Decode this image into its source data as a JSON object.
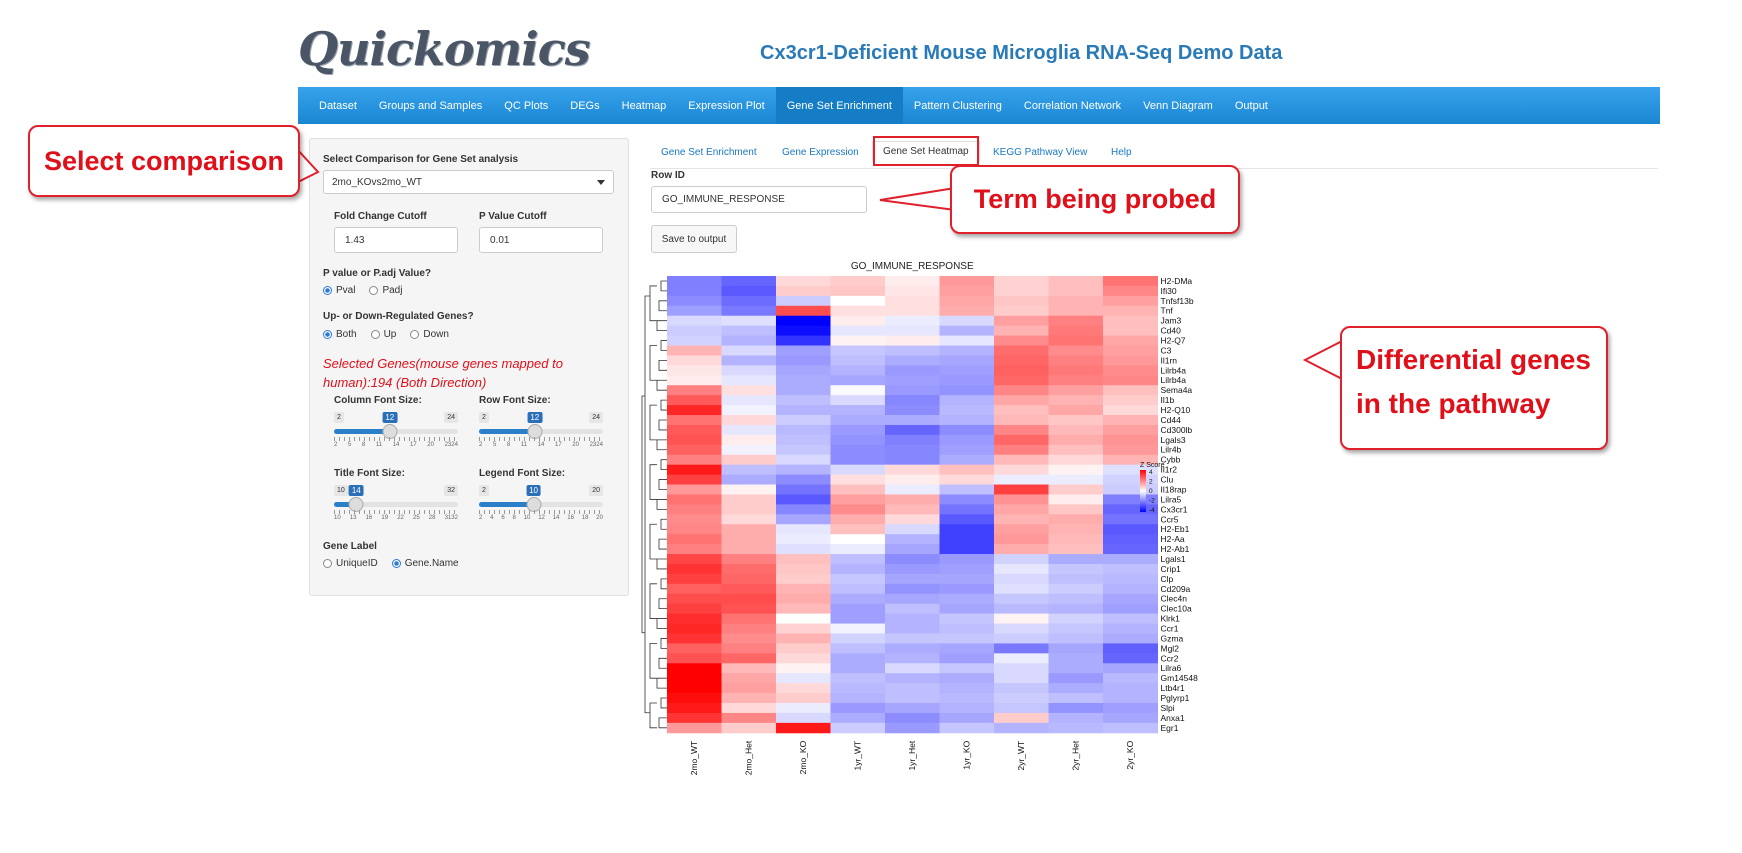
{
  "app": {
    "logo_text": "Quickomics",
    "title": "Cx3cr1-Deficient Mouse Microglia RNA-Seq Demo Data"
  },
  "navbar": {
    "items": [
      "Dataset",
      "Groups and Samples",
      "QC Plots",
      "DEGs",
      "Heatmap",
      "Expression Plot",
      "Gene Set Enrichment",
      "Pattern Clustering",
      "Correlation Network",
      "Venn Diagram",
      "Output"
    ],
    "active": "Gene Set Enrichment"
  },
  "sidebar": {
    "comparison_label": "Select Comparison for Gene Set analysis",
    "comparison_value": "2mo_KOvs2mo_WT",
    "fc_label": "Fold Change Cutoff",
    "fc_value": "1.43",
    "p_label": "P Value Cutoff",
    "p_value": "0.01",
    "ptype_label": "P value or P.adj Value?",
    "ptype_options": [
      "Pval",
      "Padj"
    ],
    "ptype_selected": "Pval",
    "direction_label": "Up- or Down-Regulated Genes?",
    "direction_options": [
      "Both",
      "Up",
      "Down"
    ],
    "direction_selected": "Both",
    "selected_genes_text": "Selected Genes(mouse genes mapped to human):194 (Both Direction)",
    "sliders": {
      "column_font": {
        "label": "Column Font Size:",
        "min": "2",
        "max": "24",
        "value": "12",
        "fraction": 0.45,
        "ticks": [
          "2",
          "5",
          "8",
          "11",
          "14",
          "17",
          "20",
          "2324"
        ]
      },
      "row_font": {
        "label": "Row Font Size:",
        "min": "2",
        "max": "24",
        "value": "12",
        "fraction": 0.45,
        "ticks": [
          "2",
          "5",
          "8",
          "11",
          "14",
          "17",
          "20",
          "2324"
        ]
      },
      "title_font": {
        "label": "Title Font Size:",
        "min": "10",
        "max": "32",
        "value": "14",
        "fraction": 0.18,
        "ticks": [
          "10",
          "13",
          "16",
          "19",
          "22",
          "25",
          "28",
          "3132"
        ]
      },
      "legend_font": {
        "label": "Legend Font Size:",
        "min": "2",
        "max": "20",
        "value": "10",
        "fraction": 0.44,
        "ticks": [
          "2",
          "4",
          "6",
          "8",
          "10",
          "12",
          "14",
          "16",
          "18",
          "20"
        ]
      }
    },
    "gene_label_label": "Gene Label",
    "gene_label_options": [
      "UniqueID",
      "Gene.Name"
    ],
    "gene_label_selected": "Gene.Name"
  },
  "tabs": {
    "items": [
      "Gene Set Enrichment",
      "Gene Expression",
      "Gene Set Heatmap",
      "KEGG Pathway View",
      "Help"
    ],
    "active": "Gene Set Heatmap"
  },
  "main": {
    "rowid_label": "Row ID",
    "rowid_value": "GO_IMMUNE_RESPONSE",
    "save_button": "Save to output"
  },
  "annotations": {
    "select_comparison": "Select comparison",
    "term_probed": "Term being probed",
    "differential_line1": "Differential genes",
    "differential_line2": "in the pathway"
  },
  "colors": {
    "navbar": "#1a86d2",
    "accent": "#2a7ab8",
    "callout": "#e0202a",
    "high": "#ff0000",
    "low": "#0000ff"
  },
  "chart_data": {
    "type": "heatmap",
    "title": "GO_IMMUNE_RESPONSE",
    "columns": [
      "2mo_WT",
      "2mo_Het",
      "2mo_KO",
      "1yr_WT",
      "1yr_Het",
      "1yr_KO",
      "2yr_WT",
      "2yr_Het",
      "2yr_KO"
    ],
    "rows": [
      "H2-DMa",
      "Ifi30",
      "Tnfsf13b",
      "Tnf",
      "Jam3",
      "Cd40",
      "H2-Q7",
      "C3",
      "Il1rn",
      "Lilrb4a",
      "Lilrb4a",
      "Sema4a",
      "Il1b",
      "H2-Q10",
      "Cd44",
      "Cd300lb",
      "Lgals3",
      "Lilr4b",
      "Cybb",
      "Il1r2",
      "Clu",
      "Il18rap",
      "Lilra5",
      "Cx3cr1",
      "Ccr5",
      "H2-Eb1",
      "H2-Aa",
      "H2-Ab1",
      "Lgals1",
      "Crip1",
      "Clp",
      "Cd209a",
      "Clec4n",
      "Clec10a",
      "Klrk1",
      "Ccr1",
      "Gzma",
      "Mgl2",
      "Ccr2",
      "Lilra6",
      "Gm14548",
      "Ltb4r1",
      "Pglyrp1",
      "Slpi",
      "Anxa1",
      "Egr1"
    ],
    "values": [
      [
        -2.0,
        -2.4,
        0.6,
        0.8,
        0.3,
        1.6,
        0.7,
        1.0,
        2.2
      ],
      [
        -2.0,
        -2.6,
        0.8,
        0.9,
        0.4,
        1.5,
        0.7,
        1.0,
        1.9
      ],
      [
        -1.8,
        -2.3,
        -0.8,
        0.0,
        0.5,
        1.4,
        0.9,
        1.2,
        1.5
      ],
      [
        -1.5,
        -2.1,
        2.8,
        0.5,
        0.5,
        1.3,
        0.8,
        1.2,
        1.2
      ],
      [
        -0.6,
        -0.5,
        -4.0,
        0.3,
        -0.3,
        -0.6,
        1.5,
        2.0,
        1.0
      ],
      [
        -0.8,
        -1.0,
        -3.8,
        -0.4,
        -0.4,
        -1.2,
        1.2,
        2.1,
        1.0
      ],
      [
        -0.7,
        -1.2,
        -3.2,
        0.2,
        0.3,
        -0.4,
        1.8,
        2.2,
        1.4
      ],
      [
        1.2,
        -0.6,
        -1.5,
        -0.9,
        -1.0,
        -1.2,
        2.3,
        1.8,
        1.5
      ],
      [
        0.6,
        -1.2,
        -1.6,
        -1.0,
        -1.3,
        -1.4,
        2.4,
        2.0,
        1.6
      ],
      [
        0.4,
        -0.6,
        -1.4,
        -1.2,
        -1.6,
        -1.5,
        2.5,
        2.1,
        1.8
      ],
      [
        0.3,
        -0.4,
        -1.3,
        -1.4,
        -1.5,
        -1.6,
        2.4,
        2.0,
        1.9
      ],
      [
        2.0,
        0.5,
        -1.3,
        -0.1,
        -1.6,
        -1.7,
        1.9,
        1.5,
        1.0
      ],
      [
        2.6,
        -0.4,
        -1.0,
        -0.6,
        -1.9,
        -1.2,
        1.4,
        1.2,
        0.8
      ],
      [
        3.4,
        -0.2,
        -1.2,
        -1.2,
        -1.8,
        -1.1,
        1.0,
        1.4,
        0.6
      ],
      [
        2.2,
        0.6,
        -0.8,
        -1.3,
        -1.3,
        -1.2,
        1.1,
        0.9,
        1.2
      ],
      [
        2.6,
        -0.4,
        -1.1,
        -1.6,
        -2.4,
        -1.8,
        1.9,
        1.1,
        1.5
      ],
      [
        2.7,
        0.3,
        -1.0,
        -1.7,
        -2.0,
        -1.6,
        2.4,
        1.3,
        1.7
      ],
      [
        2.5,
        -0.2,
        -0.9,
        -1.8,
        -1.9,
        -1.5,
        2.0,
        1.0,
        1.6
      ],
      [
        2.0,
        0.8,
        -0.6,
        -1.8,
        -1.9,
        -1.3,
        1.1,
        0.6,
        1.2
      ],
      [
        3.6,
        -1.0,
        -1.2,
        -0.6,
        0.6,
        1.0,
        0.6,
        0.2,
        -0.5
      ],
      [
        3.0,
        -1.3,
        -1.8,
        0.5,
        0.3,
        0.6,
        -0.3,
        -0.3,
        -0.7
      ],
      [
        1.6,
        0.2,
        -2.2,
        1.0,
        -0.3,
        -1.0,
        3.0,
        0.8,
        -0.8
      ],
      [
        2.2,
        0.8,
        -2.6,
        1.5,
        1.3,
        -1.8,
        1.7,
        0.3,
        -2.0
      ],
      [
        2.0,
        0.8,
        -1.9,
        1.8,
        1.1,
        -2.2,
        1.4,
        0.9,
        -2.4
      ],
      [
        1.8,
        0.6,
        -1.4,
        1.3,
        0.6,
        -2.6,
        1.2,
        1.3,
        -2.2
      ],
      [
        1.9,
        1.3,
        -0.4,
        1.0,
        -0.6,
        -3.0,
        1.5,
        1.2,
        -2.6
      ],
      [
        2.2,
        1.3,
        -0.3,
        0.0,
        -1.2,
        -3.0,
        1.6,
        1.1,
        -2.5
      ],
      [
        2.0,
        1.3,
        -0.5,
        -0.3,
        -1.4,
        -3.0,
        1.3,
        1.0,
        -2.4
      ],
      [
        2.9,
        2.0,
        1.0,
        -1.0,
        -1.8,
        -1.6,
        -0.7,
        -1.3,
        -1.3
      ],
      [
        3.2,
        2.3,
        0.9,
        -1.2,
        -1.6,
        -1.5,
        -0.4,
        -0.9,
        -1.0
      ],
      [
        3.0,
        2.4,
        0.8,
        -0.9,
        -1.4,
        -1.4,
        -0.6,
        -1.0,
        -1.1
      ],
      [
        2.5,
        2.6,
        1.2,
        -1.0,
        -1.7,
        -1.6,
        -0.5,
        -0.8,
        -1.2
      ],
      [
        2.8,
        2.8,
        1.3,
        -1.3,
        -1.4,
        -1.3,
        -0.9,
        -1.0,
        -1.4
      ],
      [
        3.0,
        2.7,
        1.1,
        -1.5,
        -1.0,
        -1.4,
        -1.1,
        -1.2,
        -1.5
      ],
      [
        3.3,
        2.2,
        0.0,
        -1.5,
        -1.2,
        -0.9,
        0.2,
        -0.7,
        -1.0
      ],
      [
        3.4,
        2.0,
        0.7,
        -0.2,
        -1.2,
        -1.0,
        -0.6,
        -0.9,
        -1.2
      ],
      [
        3.2,
        1.8,
        1.2,
        -0.7,
        -0.9,
        -0.9,
        -0.8,
        -1.0,
        -1.3
      ],
      [
        2.5,
        2.0,
        0.8,
        -1.0,
        -1.3,
        -1.4,
        -2.1,
        -1.4,
        -2.5
      ],
      [
        2.7,
        2.4,
        0.6,
        -1.3,
        -1.2,
        -1.5,
        -0.3,
        -1.3,
        -2.4
      ],
      [
        4.0,
        1.1,
        0.2,
        -1.3,
        -0.6,
        -0.9,
        -0.6,
        -1.3,
        -1.4
      ],
      [
        4.0,
        1.4,
        -0.4,
        -1.0,
        -1.2,
        -1.3,
        -0.6,
        -1.6,
        -1.1
      ],
      [
        4.0,
        1.5,
        0.6,
        -1.1,
        -1.0,
        -1.2,
        -0.9,
        -1.3,
        -1.2
      ],
      [
        3.8,
        1.2,
        0.8,
        -1.2,
        -1.0,
        -1.1,
        -0.8,
        -1.0,
        -1.2
      ],
      [
        3.6,
        0.6,
        -0.3,
        -1.6,
        -1.4,
        -1.2,
        -0.9,
        -1.7,
        -1.5
      ],
      [
        3.2,
        1.9,
        -0.6,
        -1.3,
        -1.8,
        -1.4,
        0.8,
        -1.2,
        -1.4
      ],
      [
        1.6,
        0.8,
        3.6,
        -0.8,
        -1.6,
        -0.9,
        -1.2,
        -1.1,
        -1.0
      ]
    ],
    "legend": {
      "title": "Z Score",
      "ticks": [
        "4",
        "2",
        "0",
        "-2",
        "-4"
      ],
      "range": [
        -4,
        4
      ]
    }
  }
}
